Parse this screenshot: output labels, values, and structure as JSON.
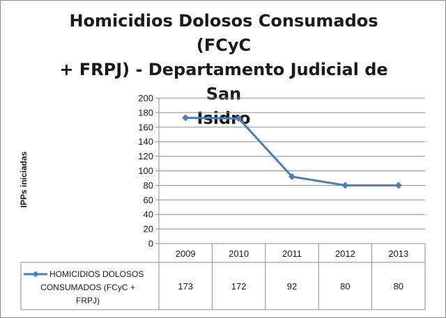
{
  "chart_data": {
    "type": "line",
    "title": "Homicidios Dolosos Consumados (FCyC + FRPJ) - Departamento Judicial de San Isidro",
    "title_lines": [
      "Homicidios Dolosos Consumados (FCyC",
      "+ FRPJ) - Departamento Judicial de San",
      "Isidro"
    ],
    "xlabel": "",
    "ylabel": "IPPs iniciadas",
    "categories": [
      "2009",
      "2010",
      "2011",
      "2012",
      "2013"
    ],
    "series": [
      {
        "name": "HOMICIDIOS DOLOSOS CONSUMADOS (FCyC + FRPJ)",
        "name_lines": [
          "HOMICIDIOS DOLOSOS",
          "CONSUMADOS (FCyC +",
          "FRPJ)"
        ],
        "values": [
          173,
          172,
          92,
          80,
          80
        ],
        "value_labels": [
          "173",
          "172",
          "92",
          "80",
          "80"
        ],
        "color": "#4a7ebb"
      }
    ],
    "ylim": [
      0,
      200
    ],
    "yticks": [
      0,
      20,
      40,
      60,
      80,
      100,
      120,
      140,
      160,
      180,
      200
    ],
    "grid": true,
    "legend": "data-table",
    "data_table": true
  }
}
